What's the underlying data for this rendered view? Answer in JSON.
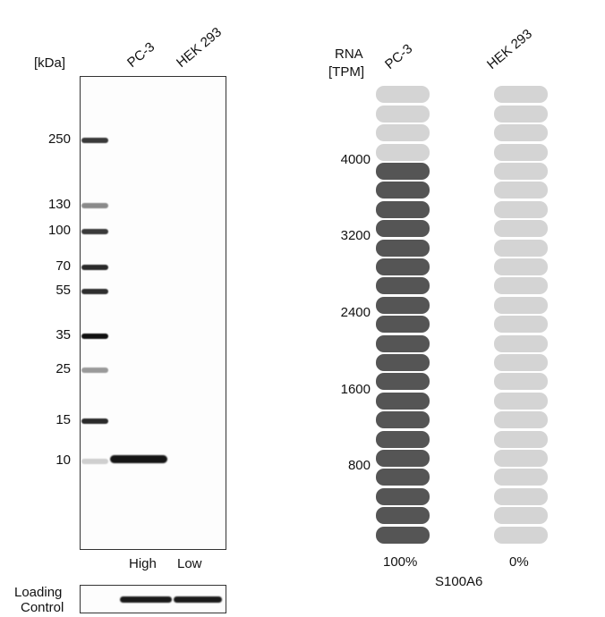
{
  "blot": {
    "unit_label": "[kDa]",
    "lanes": [
      "PC-3",
      "HEK 293"
    ],
    "mw_markers": [
      {
        "label": "250",
        "value": 250,
        "shade": "#3a3a3a"
      },
      {
        "label": "130",
        "value": 130,
        "shade": "#8a8a8a"
      },
      {
        "label": "100",
        "value": 100,
        "shade": "#3a3a3a"
      },
      {
        "label": "70",
        "value": 70,
        "shade": "#2a2a2a"
      },
      {
        "label": "55",
        "value": 55,
        "shade": "#2e2e2e"
      },
      {
        "label": "35",
        "value": 35,
        "shade": "#111111"
      },
      {
        "label": "25",
        "value": 25,
        "shade": "#9a9a9a"
      },
      {
        "label": "15",
        "value": 15,
        "shade": "#2a2a2a"
      },
      {
        "label": "10",
        "value": 10,
        "shade": "#cfcfcf"
      }
    ],
    "band": {
      "lane": "PC-3",
      "mw_kda": 10
    },
    "expression_labels": [
      "High",
      "Low"
    ],
    "loading_control_label_line1": "Loading",
    "loading_control_label_line2": "Control"
  },
  "chart_data": {
    "type": "bar",
    "title": "",
    "ylabel_line1": "RNA",
    "ylabel_line2": "[TPM]",
    "categories": [
      "PC-3",
      "HEK 293"
    ],
    "y_ticks": [
      800,
      1600,
      2400,
      3200,
      4000
    ],
    "ylim": [
      0,
      4800
    ],
    "segments": 24,
    "filled_segments": [
      20,
      0
    ],
    "values": [
      4000,
      0
    ],
    "percent_labels": [
      "100%",
      "0%"
    ],
    "gene": "S100A6",
    "colors": {
      "filled": "#555555",
      "empty": "#d4d4d4"
    }
  }
}
